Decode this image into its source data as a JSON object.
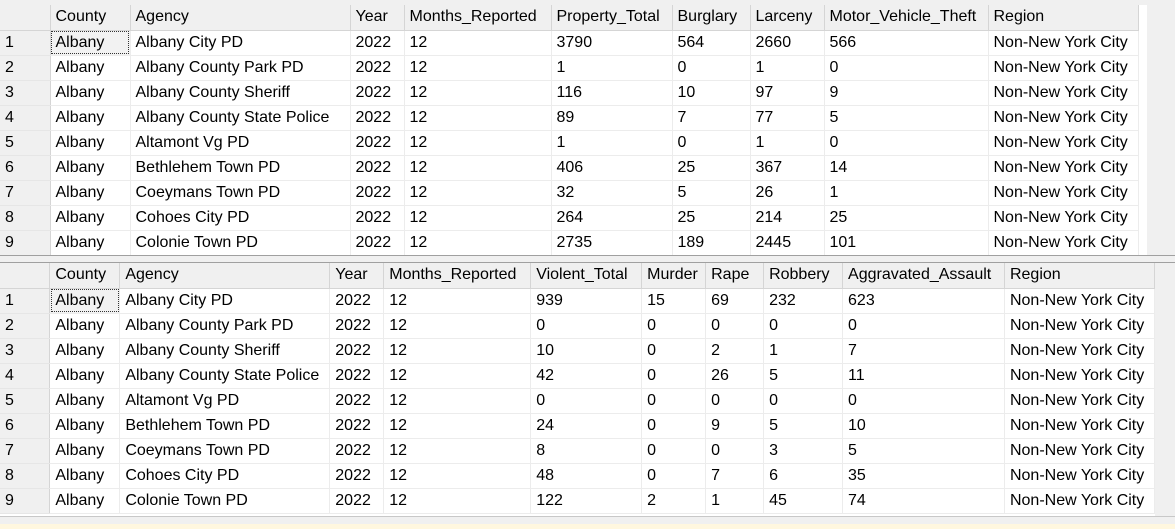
{
  "grid1": {
    "columns": [
      "County",
      "Agency",
      "Year",
      "Months_Reported",
      "Property_Total",
      "Burglary",
      "Larceny",
      "Motor_Vehicle_Theft",
      "Region"
    ],
    "rows": [
      [
        "1",
        "Albany",
        "Albany City PD",
        "2022",
        "12",
        "3790",
        "564",
        "2660",
        "566",
        "Non-New York City"
      ],
      [
        "2",
        "Albany",
        "Albany County Park PD",
        "2022",
        "12",
        "1",
        "0",
        "1",
        "0",
        "Non-New York City"
      ],
      [
        "3",
        "Albany",
        "Albany County Sheriff",
        "2022",
        "12",
        "116",
        "10",
        "97",
        "9",
        "Non-New York City"
      ],
      [
        "4",
        "Albany",
        "Albany County State Police",
        "2022",
        "12",
        "89",
        "7",
        "77",
        "5",
        "Non-New York City"
      ],
      [
        "5",
        "Albany",
        "Altamont Vg PD",
        "2022",
        "12",
        "1",
        "0",
        "1",
        "0",
        "Non-New York City"
      ],
      [
        "6",
        "Albany",
        "Bethlehem Town PD",
        "2022",
        "12",
        "406",
        "25",
        "367",
        "14",
        "Non-New York City"
      ],
      [
        "7",
        "Albany",
        "Coeymans Town PD",
        "2022",
        "12",
        "32",
        "5",
        "26",
        "1",
        "Non-New York City"
      ],
      [
        "8",
        "Albany",
        "Cohoes City PD",
        "2022",
        "12",
        "264",
        "25",
        "214",
        "25",
        "Non-New York City"
      ],
      [
        "9",
        "Albany",
        "Colonie Town PD",
        "2022",
        "12",
        "2735",
        "189",
        "2445",
        "101",
        "Non-New York City"
      ]
    ]
  },
  "grid2": {
    "columns": [
      "County",
      "Agency",
      "Year",
      "Months_Reported",
      "Violent_Total",
      "Murder",
      "Rape",
      "Robbery",
      "Aggravated_Assault",
      "Region"
    ],
    "rows": [
      [
        "1",
        "Albany",
        "Albany City PD",
        "2022",
        "12",
        "939",
        "15",
        "69",
        "232",
        "623",
        "Non-New York City"
      ],
      [
        "2",
        "Albany",
        "Albany County Park PD",
        "2022",
        "12",
        "0",
        "0",
        "0",
        "0",
        "0",
        "Non-New York City"
      ],
      [
        "3",
        "Albany",
        "Albany County Sheriff",
        "2022",
        "12",
        "10",
        "0",
        "2",
        "1",
        "7",
        "Non-New York City"
      ],
      [
        "4",
        "Albany",
        "Albany County State Police",
        "2022",
        "12",
        "42",
        "0",
        "26",
        "5",
        "11",
        "Non-New York City"
      ],
      [
        "5",
        "Albany",
        "Altamont Vg PD",
        "2022",
        "12",
        "0",
        "0",
        "0",
        "0",
        "0",
        "Non-New York City"
      ],
      [
        "6",
        "Albany",
        "Bethlehem Town PD",
        "2022",
        "12",
        "24",
        "0",
        "9",
        "5",
        "10",
        "Non-New York City"
      ],
      [
        "7",
        "Albany",
        "Coeymans Town PD",
        "2022",
        "12",
        "8",
        "0",
        "0",
        "3",
        "5",
        "Non-New York City"
      ],
      [
        "8",
        "Albany",
        "Cohoes City PD",
        "2022",
        "12",
        "48",
        "0",
        "7",
        "6",
        "35",
        "Non-New York City"
      ],
      [
        "9",
        "Albany",
        "Colonie Town PD",
        "2022",
        "12",
        "122",
        "2",
        "1",
        "45",
        "74",
        "Non-New York City"
      ]
    ]
  },
  "colors": {
    "header_bg": "#f0f0f0",
    "grid_line": "#ececec",
    "background": "#ffffff"
  }
}
